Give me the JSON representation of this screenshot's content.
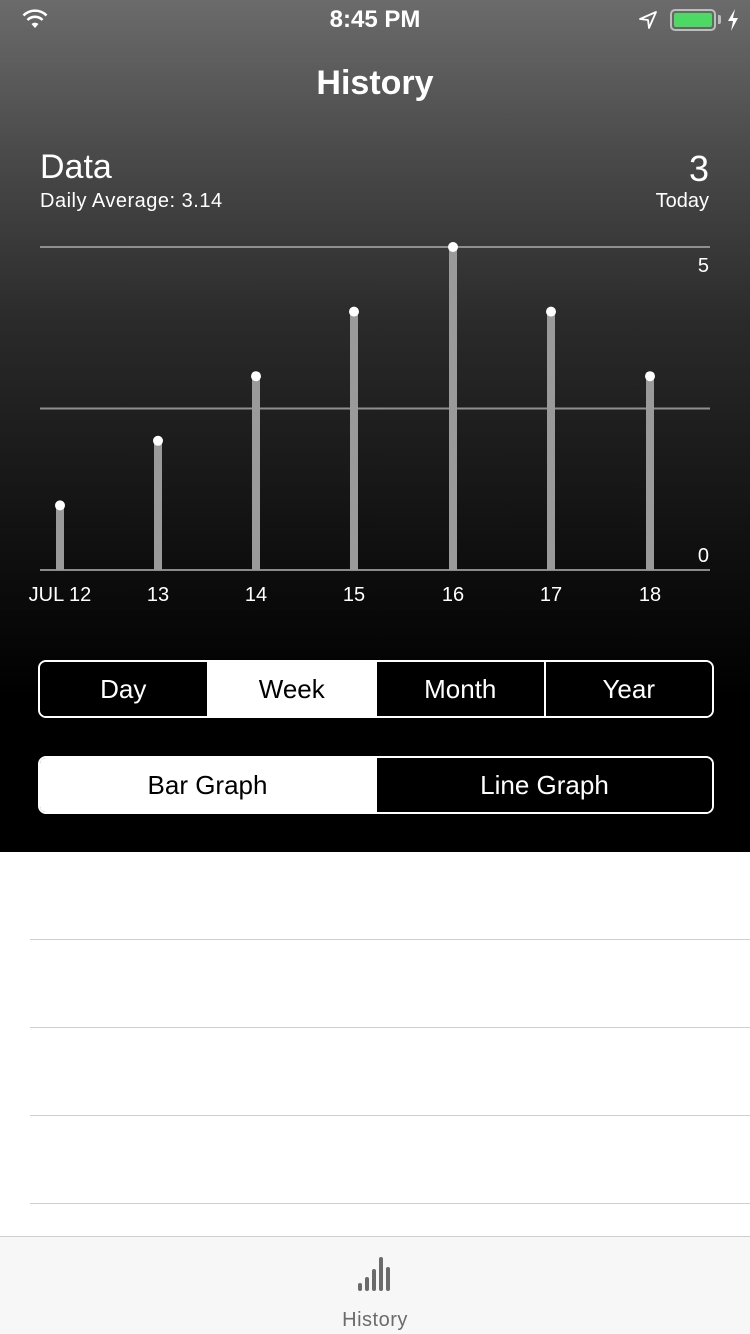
{
  "status_bar": {
    "time": "8:45 PM",
    "battery_color": "#4cd964",
    "icons": [
      "wifi-icon",
      "location-arrow-icon",
      "battery-icon",
      "charging-bolt-icon"
    ]
  },
  "nav": {
    "title": "History"
  },
  "summary": {
    "title": "Data",
    "subtitle": "Daily Average: 3.14",
    "today_value": "3",
    "today_label": "Today"
  },
  "chart_data": {
    "type": "bar",
    "categories": [
      "JUL 12",
      "13",
      "14",
      "15",
      "16",
      "17",
      "18"
    ],
    "values": [
      1,
      2,
      3,
      4,
      5,
      4,
      3
    ],
    "ylim": [
      0,
      5
    ],
    "y_tick_labels": [
      "5",
      "0"
    ],
    "grid": true,
    "bar_color": "#9a9a9a",
    "point_color": "#ffffff"
  },
  "time_range": {
    "options": [
      "Day",
      "Week",
      "Month",
      "Year"
    ],
    "selected": "Week"
  },
  "graph_type": {
    "options": [
      "Bar Graph",
      "Line Graph"
    ],
    "selected": "Bar Graph"
  },
  "tabbar": {
    "items": [
      {
        "label": "History",
        "icon": "bar-chart-icon"
      }
    ]
  }
}
